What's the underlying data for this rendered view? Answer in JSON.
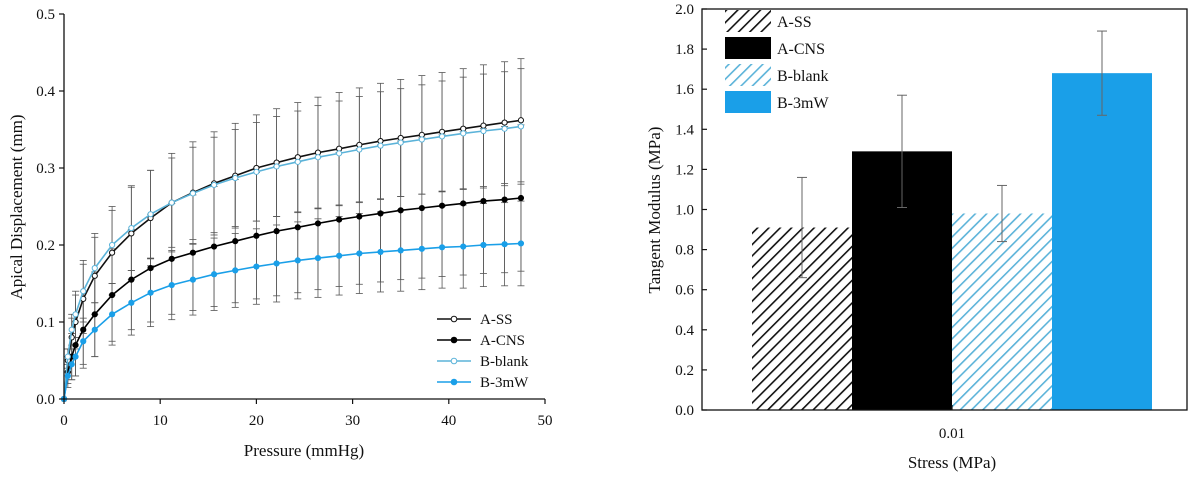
{
  "colors": {
    "axis": "#111111",
    "a_ss": "#111111",
    "a_cns": "#000000",
    "b_blank": "#5bb3d9",
    "b_3mw": "#1a9fe8",
    "error_bar": "#555555"
  },
  "chart_data": [
    {
      "type": "line",
      "title": "",
      "xlabel": "Pressure (mmHg)",
      "ylabel": "Apical Displacement (mm)",
      "xlim": [
        0,
        50
      ],
      "ylim": [
        0,
        0.5
      ],
      "xticks": [
        0,
        10,
        20,
        30,
        40,
        50
      ],
      "yticks": [
        0.0,
        0.1,
        0.2,
        0.3,
        0.4,
        0.5
      ],
      "xtick_labels": [
        "0",
        "10",
        "20",
        "30",
        "40",
        "50"
      ],
      "ytick_labels": [
        "0.0",
        "0.1",
        "0.2",
        "0.3",
        "0.4",
        "0.5"
      ],
      "grid": false,
      "legend_position": "bottom-right",
      "x": [
        0,
        0.4,
        0.8,
        1.2,
        2,
        3.2,
        5,
        7,
        9,
        11.2,
        13.4,
        15.6,
        17.8,
        20,
        22.1,
        24.3,
        26.4,
        28.6,
        30.7,
        32.9,
        35,
        37.2,
        39.3,
        41.5,
        43.6,
        45.8,
        47.5
      ],
      "series": [
        {
          "name": "A-SS",
          "marker": "open-circle",
          "values": [
            0,
            0.05,
            0.08,
            0.1,
            0.13,
            0.16,
            0.19,
            0.215,
            0.235,
            0.255,
            0.268,
            0.28,
            0.29,
            0.3,
            0.307,
            0.314,
            0.32,
            0.325,
            0.33,
            0.335,
            0.339,
            0.343,
            0.347,
            0.351,
            0.355,
            0.359,
            0.362
          ],
          "errors": [
            0,
            0.015,
            0.025,
            0.035,
            0.045,
            0.05,
            0.055,
            0.06,
            0.062,
            0.064,
            0.066,
            0.067,
            0.068,
            0.069,
            0.07,
            0.071,
            0.072,
            0.073,
            0.074,
            0.075,
            0.076,
            0.077,
            0.077,
            0.078,
            0.079,
            0.079,
            0.08
          ]
        },
        {
          "name": "A-CNS",
          "marker": "filled-circle",
          "values": [
            0,
            0.035,
            0.055,
            0.07,
            0.09,
            0.11,
            0.135,
            0.155,
            0.17,
            0.182,
            0.19,
            0.198,
            0.205,
            0.212,
            0.218,
            0.223,
            0.228,
            0.233,
            0.237,
            0.241,
            0.245,
            0.248,
            0.251,
            0.254,
            0.257,
            0.259,
            0.261
          ],
          "errors": [
            0,
            0.02,
            0.03,
            0.04,
            0.05,
            0.055,
            0.06,
            0.065,
            0.07,
            0.072,
            0.075,
            0.078,
            0.08,
            0.082,
            0.084,
            0.085,
            0.086,
            0.087,
            0.088,
            0.089,
            0.09,
            0.091,
            0.092,
            0.093,
            0.094,
            0.095,
            0.095
          ]
        },
        {
          "name": "B-blank",
          "marker": "open-circle",
          "values": [
            0,
            0.055,
            0.09,
            0.11,
            0.14,
            0.17,
            0.2,
            0.222,
            0.24,
            0.255,
            0.267,
            0.278,
            0.287,
            0.295,
            0.302,
            0.308,
            0.314,
            0.319,
            0.324,
            0.329,
            0.333,
            0.337,
            0.341,
            0.345,
            0.348,
            0.351,
            0.354
          ],
          "errors": [
            0,
            0.01,
            0.02,
            0.03,
            0.04,
            0.045,
            0.05,
            0.055,
            0.057,
            0.058,
            0.06,
            0.062,
            0.063,
            0.064,
            0.065,
            0.066,
            0.067,
            0.068,
            0.069,
            0.07,
            0.07,
            0.071,
            0.072,
            0.073,
            0.074,
            0.074,
            0.075
          ]
        },
        {
          "name": "B-3mW",
          "marker": "filled-circle",
          "values": [
            0,
            0.03,
            0.045,
            0.055,
            0.075,
            0.09,
            0.11,
            0.125,
            0.138,
            0.148,
            0.155,
            0.162,
            0.167,
            0.172,
            0.176,
            0.18,
            0.183,
            0.186,
            0.189,
            0.191,
            0.193,
            0.195,
            0.197,
            0.198,
            0.2,
            0.201,
            0.202
          ],
          "errors": [
            0,
            0.01,
            0.02,
            0.025,
            0.03,
            0.035,
            0.04,
            0.042,
            0.044,
            0.045,
            0.046,
            0.047,
            0.048,
            0.049,
            0.05,
            0.05,
            0.051,
            0.051,
            0.052,
            0.052,
            0.053,
            0.053,
            0.053,
            0.054,
            0.054,
            0.054,
            0.055
          ]
        }
      ]
    },
    {
      "type": "bar",
      "title": "",
      "xlabel": "Stress (MPa)",
      "ylabel": "Tangent Modulus (MPa)",
      "categories": [
        "0.01"
      ],
      "ylim": [
        0,
        2.0
      ],
      "yticks": [
        0.0,
        0.2,
        0.4,
        0.6,
        0.8,
        1.0,
        1.2,
        1.4,
        1.6,
        1.8,
        2.0
      ],
      "ytick_labels": [
        "0.0",
        "0.2",
        "0.4",
        "0.6",
        "0.8",
        "1.0",
        "1.2",
        "1.4",
        "1.6",
        "1.8",
        "2.0"
      ],
      "grid": false,
      "legend_position": "top-left",
      "series": [
        {
          "name": "A-SS",
          "fill": "black-hatch",
          "values": [
            0.91
          ],
          "errors": [
            0.25
          ]
        },
        {
          "name": "A-CNS",
          "fill": "solid-black",
          "values": [
            1.29
          ],
          "errors": [
            0.28
          ]
        },
        {
          "name": "B-blank",
          "fill": "blue-hatch",
          "values": [
            0.98
          ],
          "errors": [
            0.14
          ]
        },
        {
          "name": "B-3mW",
          "fill": "solid-blue",
          "values": [
            1.68
          ],
          "errors": [
            0.21
          ]
        }
      ]
    }
  ]
}
